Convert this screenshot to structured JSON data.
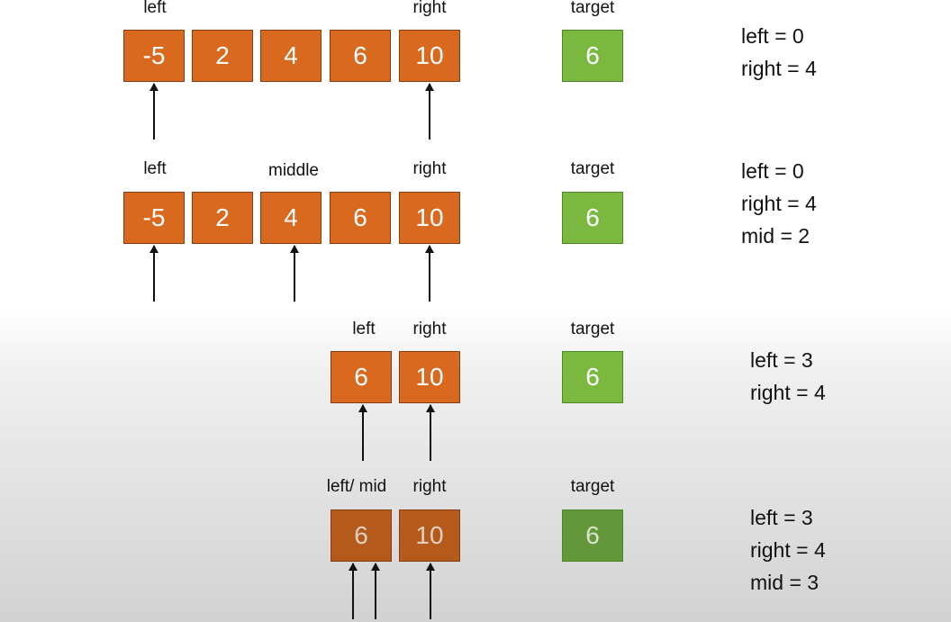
{
  "steps": [
    {
      "labels": {
        "left": "left",
        "right": "right",
        "target": "target"
      },
      "cells": [
        "-5",
        "2",
        "4",
        "6",
        "10"
      ],
      "target_value": "6",
      "state": [
        "left = 0",
        "right = 4"
      ]
    },
    {
      "labels": {
        "left": "left",
        "middle": "middle",
        "right": "right",
        "target": "target"
      },
      "cells": [
        "-5",
        "2",
        "4",
        "6",
        "10"
      ],
      "target_value": "6",
      "state": [
        "left = 0",
        "right = 4",
        "mid = 2"
      ]
    },
    {
      "labels": {
        "left": "left",
        "right": "right",
        "target": "target"
      },
      "cells": [
        "6",
        "10"
      ],
      "target_value": "6",
      "state": [
        "left = 3",
        "right = 4"
      ]
    },
    {
      "labels": {
        "left_mid": "left/ mid",
        "right": "right",
        "target": "target"
      },
      "cells": [
        "6",
        "10"
      ],
      "target_value": "6",
      "state": [
        "left = 3",
        "right = 4",
        "mid = 3"
      ]
    }
  ]
}
